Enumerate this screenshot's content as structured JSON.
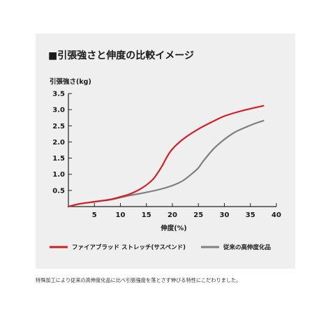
{
  "chart_data": {
    "type": "line",
    "title": "■引張強さと伸度の比較イメージ",
    "ylabel": "引張強さ(kg)",
    "xlabel": "伸度(%)",
    "xlim": [
      0,
      40
    ],
    "ylim": [
      0,
      3.5
    ],
    "xticks": [
      "5",
      "10",
      "15",
      "20",
      "25",
      "30",
      "35",
      "40"
    ],
    "yticks": [
      "0.5",
      "1.0",
      "1.5",
      "2.0",
      "2.5",
      "3.0",
      "3.5"
    ],
    "legend_position": "bottom",
    "series": [
      {
        "name": "ファイアブラッド ストレッチ(サスペンド)",
        "color": "#d21f26",
        "points": [
          [
            0,
            0
          ],
          [
            2,
            0.08
          ],
          [
            5,
            0.15
          ],
          [
            8,
            0.22
          ],
          [
            10,
            0.3
          ],
          [
            12,
            0.4
          ],
          [
            14,
            0.56
          ],
          [
            16,
            0.8
          ],
          [
            17,
            1.0
          ],
          [
            18,
            1.25
          ],
          [
            19,
            1.55
          ],
          [
            20,
            1.78
          ],
          [
            22,
            2.08
          ],
          [
            25,
            2.4
          ],
          [
            28,
            2.65
          ],
          [
            30,
            2.8
          ],
          [
            33,
            2.95
          ],
          [
            35,
            3.03
          ],
          [
            37.5,
            3.12
          ]
        ]
      },
      {
        "name": "従来の高伸度化品",
        "color": "#7f7f7f",
        "points": [
          [
            0,
            0
          ],
          [
            2,
            0.08
          ],
          [
            5,
            0.15
          ],
          [
            8,
            0.21
          ],
          [
            10,
            0.28
          ],
          [
            12,
            0.35
          ],
          [
            15,
            0.44
          ],
          [
            18,
            0.55
          ],
          [
            20,
            0.65
          ],
          [
            22,
            0.8
          ],
          [
            24,
            1.05
          ],
          [
            25,
            1.2
          ],
          [
            26,
            1.42
          ],
          [
            28,
            1.8
          ],
          [
            30,
            2.08
          ],
          [
            32,
            2.3
          ],
          [
            34,
            2.45
          ],
          [
            36,
            2.58
          ],
          [
            37.5,
            2.66
          ]
        ]
      }
    ]
  },
  "caption": "特殊加工により従来の高伸度化品に比べ引張強度を落とさず伸びる特性にこだわりました。"
}
